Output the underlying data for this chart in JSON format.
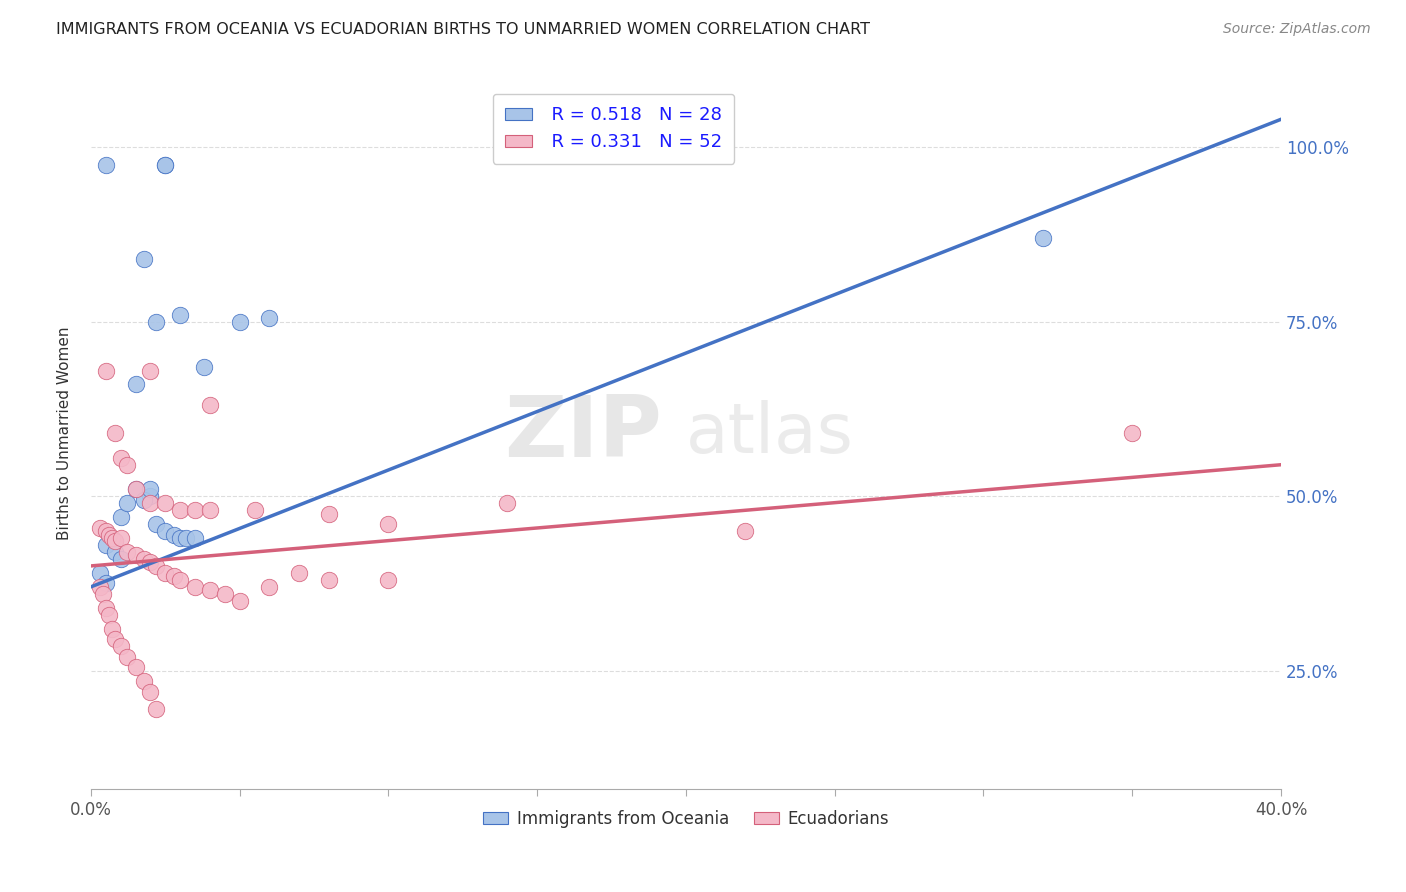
{
  "title": "IMMIGRANTS FROM OCEANIA VS ECUADORIAN BIRTHS TO UNMARRIED WOMEN CORRELATION CHART",
  "source": "Source: ZipAtlas.com",
  "ylabel": "Births to Unmarried Women",
  "legend_blue_R": "R = 0.518",
  "legend_blue_N": "N = 28",
  "legend_pink_R": "R = 0.331",
  "legend_pink_N": "N = 52",
  "legend_label_blue": "Immigrants from Oceania",
  "legend_label_pink": "Ecuadorians",
  "watermark_zip": "ZIP",
  "watermark_atlas": "atlas",
  "blue_color": "#a8c4e8",
  "blue_line_color": "#4472c4",
  "pink_color": "#f4b8c8",
  "pink_line_color": "#d4607a",
  "blue_scatter": [
    [
      0.005,
      0.975
    ],
    [
      0.025,
      0.975
    ],
    [
      0.025,
      0.975
    ],
    [
      0.018,
      0.84
    ],
    [
      0.022,
      0.75
    ],
    [
      0.03,
      0.76
    ],
    [
      0.038,
      0.685
    ],
    [
      0.05,
      0.75
    ],
    [
      0.06,
      0.755
    ],
    [
      0.015,
      0.66
    ],
    [
      0.02,
      0.5
    ],
    [
      0.01,
      0.47
    ],
    [
      0.012,
      0.49
    ],
    [
      0.015,
      0.51
    ],
    [
      0.018,
      0.495
    ],
    [
      0.02,
      0.51
    ],
    [
      0.022,
      0.46
    ],
    [
      0.025,
      0.45
    ],
    [
      0.028,
      0.445
    ],
    [
      0.03,
      0.44
    ],
    [
      0.032,
      0.44
    ],
    [
      0.035,
      0.44
    ],
    [
      0.005,
      0.43
    ],
    [
      0.008,
      0.42
    ],
    [
      0.01,
      0.41
    ],
    [
      0.003,
      0.39
    ],
    [
      0.005,
      0.375
    ],
    [
      0.32,
      0.87
    ]
  ],
  "pink_scatter": [
    [
      0.005,
      0.68
    ],
    [
      0.02,
      0.68
    ],
    [
      0.04,
      0.63
    ],
    [
      0.008,
      0.59
    ],
    [
      0.01,
      0.555
    ],
    [
      0.012,
      0.545
    ],
    [
      0.015,
      0.51
    ],
    [
      0.02,
      0.49
    ],
    [
      0.025,
      0.49
    ],
    [
      0.03,
      0.48
    ],
    [
      0.035,
      0.48
    ],
    [
      0.04,
      0.48
    ],
    [
      0.055,
      0.48
    ],
    [
      0.08,
      0.475
    ],
    [
      0.1,
      0.46
    ],
    [
      0.14,
      0.49
    ],
    [
      0.22,
      0.45
    ],
    [
      0.35,
      0.59
    ],
    [
      0.003,
      0.455
    ],
    [
      0.005,
      0.45
    ],
    [
      0.006,
      0.445
    ],
    [
      0.007,
      0.44
    ],
    [
      0.008,
      0.435
    ],
    [
      0.01,
      0.44
    ],
    [
      0.012,
      0.42
    ],
    [
      0.015,
      0.415
    ],
    [
      0.018,
      0.41
    ],
    [
      0.02,
      0.405
    ],
    [
      0.022,
      0.4
    ],
    [
      0.025,
      0.39
    ],
    [
      0.028,
      0.385
    ],
    [
      0.03,
      0.38
    ],
    [
      0.035,
      0.37
    ],
    [
      0.04,
      0.365
    ],
    [
      0.045,
      0.36
    ],
    [
      0.05,
      0.35
    ],
    [
      0.06,
      0.37
    ],
    [
      0.07,
      0.39
    ],
    [
      0.08,
      0.38
    ],
    [
      0.1,
      0.38
    ],
    [
      0.003,
      0.37
    ],
    [
      0.004,
      0.36
    ],
    [
      0.005,
      0.34
    ],
    [
      0.006,
      0.33
    ],
    [
      0.007,
      0.31
    ],
    [
      0.008,
      0.295
    ],
    [
      0.01,
      0.285
    ],
    [
      0.012,
      0.27
    ],
    [
      0.015,
      0.255
    ],
    [
      0.018,
      0.235
    ],
    [
      0.02,
      0.22
    ],
    [
      0.022,
      0.195
    ]
  ],
  "x_min": 0.0,
  "x_max": 0.4,
  "y_min": 0.08,
  "y_max": 1.1,
  "blue_line_x": [
    0.0,
    0.4
  ],
  "blue_line_y": [
    0.37,
    1.04
  ],
  "pink_line_x": [
    0.0,
    0.4
  ],
  "pink_line_y": [
    0.4,
    0.545
  ],
  "x_ticks": [
    0.0,
    0.05,
    0.1,
    0.15,
    0.2,
    0.25,
    0.3,
    0.35,
    0.4
  ],
  "y_ticks": [
    0.25,
    0.5,
    0.75,
    1.0
  ],
  "right_color": "#4472c4"
}
